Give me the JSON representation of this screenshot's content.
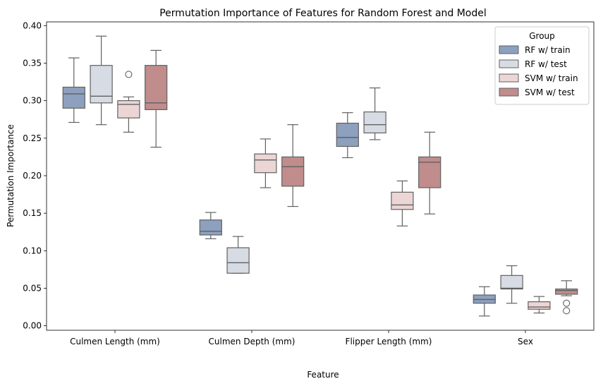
{
  "chart_data": {
    "type": "box",
    "title": "Permutation Importance of Features for Random Forest and Model",
    "xlabel": "Feature",
    "ylabel": "Permutation Importance",
    "categories": [
      "Culmen Length (mm)",
      "Culmen Depth (mm)",
      "Flipper Length (mm)",
      "Sex"
    ],
    "ylim": [
      -0.006,
      0.405
    ],
    "yticks": [
      "0.00",
      "0.05",
      "0.10",
      "0.15",
      "0.20",
      "0.25",
      "0.30",
      "0.35",
      "0.40"
    ],
    "legend": {
      "title": "Group",
      "position": "top-right"
    },
    "series": [
      {
        "name": "RF w/ train",
        "color": "#8da0be",
        "boxes": [
          {
            "whislo": 0.271,
            "q1": 0.29,
            "med": 0.309,
            "q3": 0.318,
            "whishi": 0.357,
            "fliers": []
          },
          {
            "whislo": 0.116,
            "q1": 0.121,
            "med": 0.126,
            "q3": 0.141,
            "whishi": 0.151,
            "fliers": []
          },
          {
            "whislo": 0.224,
            "q1": 0.239,
            "med": 0.251,
            "q3": 0.27,
            "whishi": 0.284,
            "fliers": []
          },
          {
            "whislo": 0.013,
            "q1": 0.03,
            "med": 0.035,
            "q3": 0.041,
            "whishi": 0.052,
            "fliers": []
          }
        ]
      },
      {
        "name": "RF w/ test",
        "color": "#d7dbe3",
        "boxes": [
          {
            "whislo": 0.268,
            "q1": 0.297,
            "med": 0.306,
            "q3": 0.347,
            "whishi": 0.386,
            "fliers": []
          },
          {
            "whislo": 0.07,
            "q1": 0.07,
            "med": 0.084,
            "q3": 0.104,
            "whishi": 0.119,
            "fliers": []
          },
          {
            "whislo": 0.248,
            "q1": 0.257,
            "med": 0.268,
            "q3": 0.285,
            "whishi": 0.317,
            "fliers": []
          },
          {
            "whislo": 0.03,
            "q1": 0.049,
            "med": 0.05,
            "q3": 0.067,
            "whishi": 0.08,
            "fliers": []
          }
        ]
      },
      {
        "name": "SVM w/ train",
        "color": "#ecd5d5",
        "boxes": [
          {
            "whislo": 0.258,
            "q1": 0.277,
            "med": 0.295,
            "q3": 0.3,
            "whishi": 0.305,
            "fliers": [
              0.335
            ]
          },
          {
            "whislo": 0.184,
            "q1": 0.204,
            "med": 0.221,
            "q3": 0.229,
            "whishi": 0.249,
            "fliers": []
          },
          {
            "whislo": 0.133,
            "q1": 0.155,
            "med": 0.161,
            "q3": 0.178,
            "whishi": 0.193,
            "fliers": []
          },
          {
            "whislo": 0.017,
            "q1": 0.022,
            "med": 0.025,
            "q3": 0.032,
            "whishi": 0.039,
            "fliers": []
          }
        ]
      },
      {
        "name": "SVM w/ test",
        "color": "#c08c8c",
        "boxes": [
          {
            "whislo": 0.238,
            "q1": 0.288,
            "med": 0.297,
            "q3": 0.347,
            "whishi": 0.367,
            "fliers": []
          },
          {
            "whislo": 0.159,
            "q1": 0.186,
            "med": 0.212,
            "q3": 0.225,
            "whishi": 0.268,
            "fliers": []
          },
          {
            "whislo": 0.149,
            "q1": 0.184,
            "med": 0.218,
            "q3": 0.225,
            "whishi": 0.258,
            "fliers": []
          },
          {
            "whislo": 0.04,
            "q1": 0.042,
            "med": 0.047,
            "q3": 0.049,
            "whishi": 0.06,
            "fliers": [
              0.03,
              0.02
            ]
          }
        ]
      }
    ]
  }
}
